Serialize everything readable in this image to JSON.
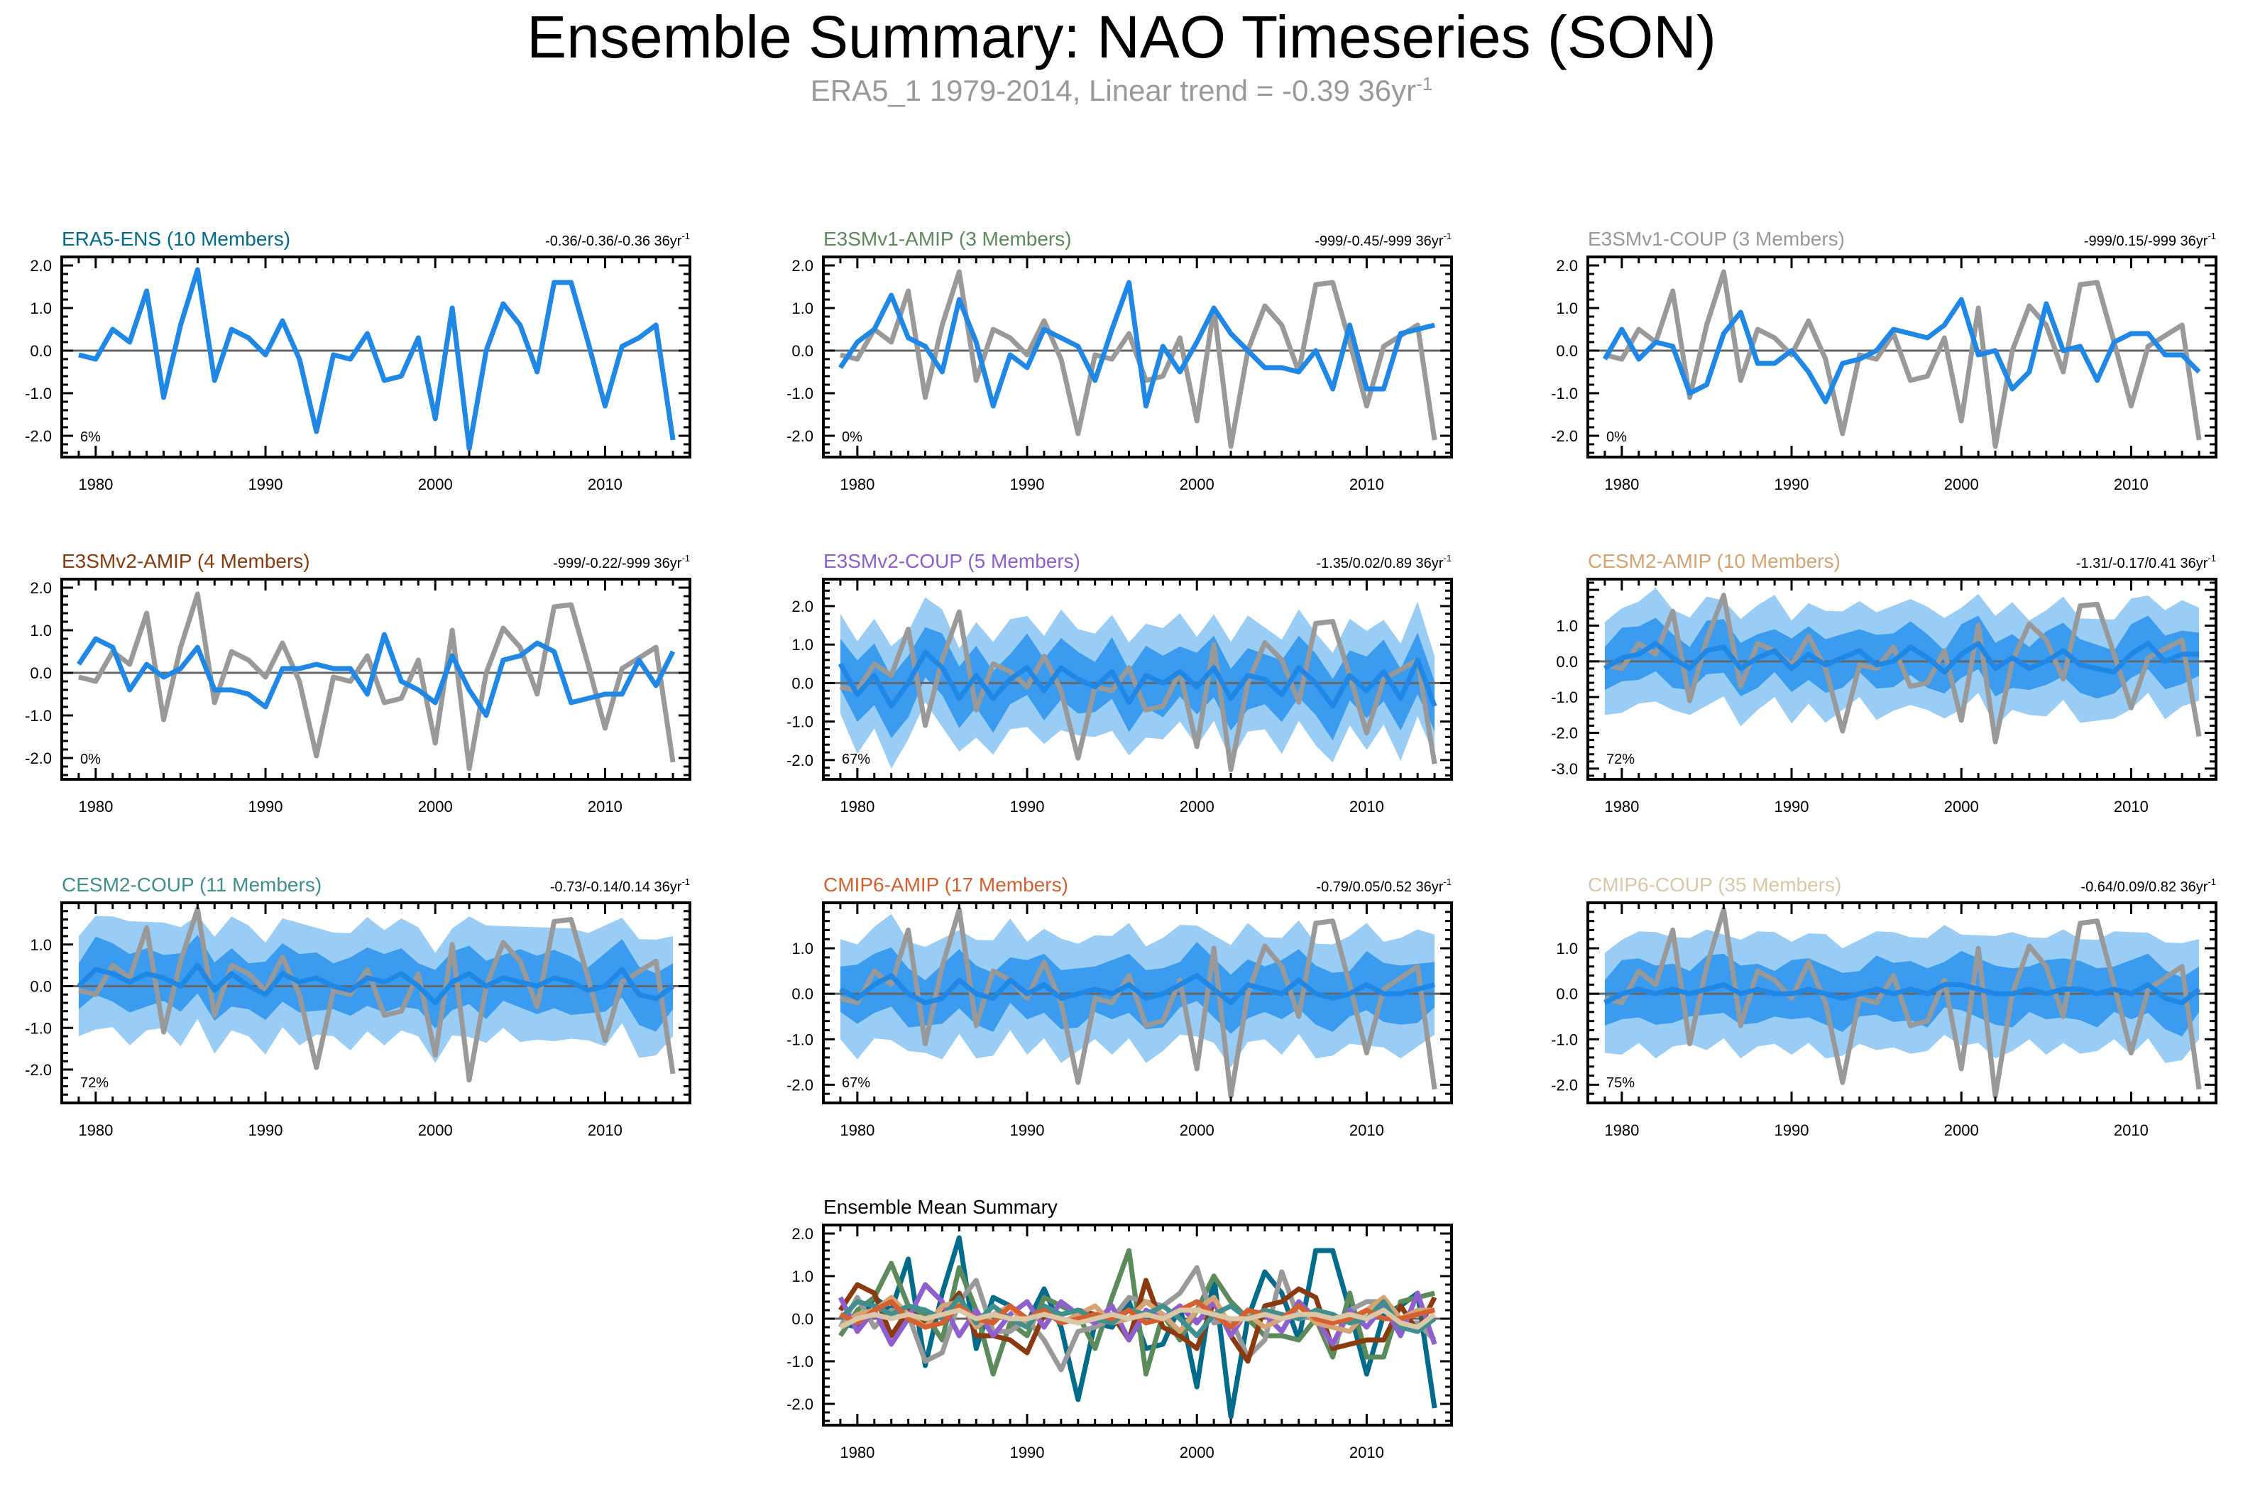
{
  "title": "Ensemble Summary: NAO Timeseries (SON)",
  "subtitle": {
    "text": "ERA5_1 1979-2014, Linear trend = -0.39 36yr",
    "exponent": "-1"
  },
  "colors": {
    "obs": "#999999",
    "mean": "#1f87e5",
    "band_outer": "#9acdf5",
    "band_inner": "#3a9bef",
    "zero_line": "#666666"
  },
  "chart_data": [
    {
      "type": "line",
      "title": "ERA5-ENS (10 Members)",
      "title_color": "#006b8a",
      "trend": "-0.36/-0.36/-0.36 36yr",
      "trend_exp": "-1",
      "pct": "6%",
      "ylim": [
        -2.5,
        2.2
      ],
      "yticks": [
        "2.0",
        "1.0",
        "0.0",
        "-1.0",
        "-2.0"
      ],
      "ytick_values": [
        2,
        1,
        0,
        -1,
        -2
      ],
      "xticks": [
        "1980",
        "1990",
        "2000",
        "2010"
      ],
      "xtick_values": [
        1980,
        1990,
        2000,
        2010
      ],
      "show_obs": false,
      "band": false,
      "mean": [
        -0.1,
        -0.2,
        0.5,
        0.2,
        1.4,
        -1.1,
        0.6,
        1.9,
        -0.7,
        0.5,
        0.3,
        -0.1,
        0.7,
        -0.2,
        -1.9,
        -0.1,
        -0.2,
        0.4,
        -0.7,
        -0.6,
        0.3,
        -1.6,
        1.0,
        -2.3,
        0.0,
        1.1,
        0.6,
        -0.5,
        1.6,
        1.6,
        0.2,
        -1.3,
        0.1,
        0.3,
        0.6,
        -2.1
      ]
    },
    {
      "type": "line",
      "title": "E3SMv1-AMIP (3 Members)",
      "title_color": "#5b8a5b",
      "trend": "-999/-0.45/-999 36yr",
      "trend_exp": "-1",
      "pct": "0%",
      "ylim": [
        -2.5,
        2.2
      ],
      "yticks": [
        "2.0",
        "1.0",
        "0.0",
        "-1.0",
        "-2.0"
      ],
      "ytick_values": [
        2,
        1,
        0,
        -1,
        -2
      ],
      "xticks": [
        "1980",
        "1990",
        "2000",
        "2010"
      ],
      "xtick_values": [
        1980,
        1990,
        2000,
        2010
      ],
      "show_obs": true,
      "band": false,
      "mean": [
        -0.4,
        0.2,
        0.5,
        1.3,
        0.3,
        0.1,
        -0.5,
        1.2,
        0.2,
        -1.3,
        -0.1,
        -0.4,
        0.5,
        0.3,
        0.1,
        -0.7,
        0.5,
        1.6,
        -1.3,
        0.1,
        -0.5,
        0.2,
        1.0,
        0.4,
        0.0,
        -0.4,
        -0.4,
        -0.5,
        0.0,
        -0.9,
        0.6,
        -0.9,
        -0.9,
        0.4,
        0.5,
        0.6
      ]
    },
    {
      "type": "line",
      "title": "E3SMv1-COUP (3 Members)",
      "title_color": "#999999",
      "trend": "-999/0.15/-999 36yr",
      "trend_exp": "-1",
      "pct": "0%",
      "ylim": [
        -2.5,
        2.2
      ],
      "yticks": [
        "2.0",
        "1.0",
        "0.0",
        "-1.0",
        "-2.0"
      ],
      "ytick_values": [
        2,
        1,
        0,
        -1,
        -2
      ],
      "xticks": [
        "1980",
        "1990",
        "2000",
        "2010"
      ],
      "xtick_values": [
        1980,
        1990,
        2000,
        2010
      ],
      "show_obs": true,
      "band": false,
      "mean": [
        -0.2,
        0.5,
        -0.2,
        0.2,
        0.1,
        -1.0,
        -0.8,
        0.4,
        0.9,
        -0.3,
        -0.3,
        0.0,
        -0.5,
        -1.2,
        -0.3,
        -0.2,
        0.0,
        0.5,
        0.4,
        0.3,
        0.6,
        1.2,
        -0.1,
        0.0,
        -0.9,
        -0.5,
        1.1,
        0.0,
        0.1,
        -0.7,
        0.2,
        0.4,
        0.4,
        -0.1,
        -0.1,
        -0.5
      ]
    },
    {
      "type": "line",
      "title": "E3SMv2-AMIP (4 Members)",
      "title_color": "#8b3a0f",
      "trend": "-999/-0.22/-999 36yr",
      "trend_exp": "-1",
      "pct": "0%",
      "ylim": [
        -2.5,
        2.2
      ],
      "yticks": [
        "2.0",
        "1.0",
        "0.0",
        "-1.0",
        "-2.0"
      ],
      "ytick_values": [
        2,
        1,
        0,
        -1,
        -2
      ],
      "xticks": [
        "1980",
        "1990",
        "2000",
        "2010"
      ],
      "xtick_values": [
        1980,
        1990,
        2000,
        2010
      ],
      "show_obs": true,
      "band": false,
      "mean": [
        0.2,
        0.8,
        0.6,
        -0.4,
        0.2,
        -0.1,
        0.1,
        0.6,
        -0.4,
        -0.4,
        -0.5,
        -0.8,
        0.1,
        0.1,
        0.2,
        0.1,
        0.1,
        -0.5,
        0.9,
        -0.2,
        -0.4,
        -0.7,
        0.4,
        -0.4,
        -1.0,
        0.3,
        0.4,
        0.7,
        0.5,
        -0.7,
        -0.6,
        -0.5,
        -0.5,
        0.3,
        -0.3,
        0.5
      ]
    },
    {
      "type": "line",
      "title": "E3SMv2-COUP (5 Members)",
      "title_color": "#8f5fcf",
      "trend": "-1.35/0.02/0.89 36yr",
      "trend_exp": "-1",
      "pct": "67%",
      "ylim": [
        -2.5,
        2.7
      ],
      "yticks": [
        "2.0",
        "1.0",
        "0.0",
        "-1.0",
        "-2.0"
      ],
      "ytick_values": [
        2,
        1,
        0,
        -1,
        -2
      ],
      "xticks": [
        "1980",
        "1990",
        "2000",
        "2010"
      ],
      "xtick_values": [
        1980,
        1990,
        2000,
        2010
      ],
      "show_obs": true,
      "band": true,
      "band_outer": 1.3,
      "band_inner": 0.65,
      "mean": [
        0.5,
        -0.3,
        0.2,
        -0.6,
        0.0,
        0.8,
        0.4,
        -0.4,
        0.2,
        -0.4,
        0.1,
        0.4,
        -0.2,
        0.4,
        0.1,
        -0.1,
        0.3,
        -0.5,
        0.2,
        0.0,
        0.3,
        -0.1,
        0.4,
        -0.4,
        0.2,
        0.1,
        -0.3,
        0.4,
        0.0,
        -0.6,
        0.2,
        -0.2,
        0.3,
        -0.4,
        0.6,
        -0.6
      ]
    },
    {
      "type": "line",
      "title": "CESM2-AMIP (10 Members)",
      "title_color": "#d6a373",
      "trend": "-1.31/-0.17/0.41 36yr",
      "trend_exp": "-1",
      "pct": "72%",
      "ylim": [
        -3.3,
        2.3
      ],
      "yticks": [
        "1.0",
        "0.0",
        "-1.0",
        "-2.0",
        "-3.0"
      ],
      "ytick_values": [
        1,
        0,
        -1,
        -2,
        -3
      ],
      "xticks": [
        "1980",
        "1990",
        "2000",
        "2010"
      ],
      "xtick_values": [
        1980,
        1990,
        2000,
        2010
      ],
      "show_obs": true,
      "band": true,
      "band_outer": 1.3,
      "band_inner": 0.6,
      "mean": [
        -0.2,
        0.1,
        0.2,
        0.5,
        0.1,
        -0.2,
        0.3,
        0.4,
        -0.2,
        0.1,
        0.3,
        -0.2,
        0.2,
        -0.1,
        0.1,
        0.3,
        -0.1,
        0.0,
        0.4,
        0.1,
        -0.3,
        0.2,
        0.5,
        -0.2,
        0.1,
        -0.2,
        0.0,
        0.3,
        -0.1,
        -0.2,
        -0.3,
        0.2,
        0.5,
        0.0,
        0.2,
        0.2
      ]
    },
    {
      "type": "line",
      "title": "CESM2-COUP (11 Members)",
      "title_color": "#3f8f8f",
      "trend": "-0.73/-0.14/0.14 36yr",
      "trend_exp": "-1",
      "pct": "72%",
      "ylim": [
        -2.8,
        2.0
      ],
      "yticks": [
        "1.0",
        "0.0",
        "-1.0",
        "-2.0"
      ],
      "ytick_values": [
        1,
        0,
        -1,
        -2
      ],
      "xticks": [
        "1980",
        "1990",
        "2000",
        "2010"
      ],
      "xtick_values": [
        1980,
        1990,
        2000,
        2010
      ],
      "show_obs": true,
      "band": true,
      "band_outer": 1.2,
      "band_inner": 0.55,
      "mean": [
        0.0,
        0.4,
        0.3,
        0.1,
        0.3,
        0.2,
        0.0,
        0.5,
        -0.1,
        0.3,
        0.0,
        -0.2,
        0.3,
        0.1,
        0.2,
        0.0,
        -0.1,
        0.2,
        0.1,
        0.3,
        0.0,
        -0.4,
        0.1,
        0.3,
        0.0,
        0.2,
        0.1,
        0.0,
        0.2,
        0.1,
        -0.1,
        0.0,
        0.4,
        -0.2,
        -0.3,
        0.0
      ]
    },
    {
      "type": "line",
      "title": "CMIP6-AMIP (17 Members)",
      "title_color": "#d65f2f",
      "trend": "-0.79/0.05/0.52 36yr",
      "trend_exp": "-1",
      "pct": "67%",
      "ylim": [
        -2.4,
        2.0
      ],
      "yticks": [
        "1.0",
        "0.0",
        "-1.0",
        "-2.0"
      ],
      "ytick_values": [
        1,
        0,
        -1,
        -2
      ],
      "xticks": [
        "1980",
        "1990",
        "2000",
        "2010"
      ],
      "xtick_values": [
        1980,
        1990,
        2000,
        2010
      ],
      "show_obs": true,
      "band": true,
      "band_outer": 1.1,
      "band_inner": 0.5,
      "mean": [
        0.1,
        -0.1,
        0.2,
        0.4,
        0.0,
        -0.2,
        -0.1,
        0.3,
        0.0,
        -0.1,
        0.3,
        0.0,
        0.2,
        -0.1,
        0.0,
        0.1,
        0.0,
        0.2,
        -0.1,
        0.0,
        0.2,
        0.4,
        0.1,
        -0.2,
        0.2,
        0.1,
        0.0,
        0.3,
        0.0,
        -0.1,
        0.0,
        0.2,
        0.0,
        0.0,
        0.1,
        0.2
      ]
    },
    {
      "type": "line",
      "title": "CMIP6-COUP (35 Members)",
      "title_color": "#d9c7a7",
      "trend": "-0.64/0.09/0.82 36yr",
      "trend_exp": "-1",
      "pct": "75%",
      "ylim": [
        -2.4,
        2.0
      ],
      "yticks": [
        "1.0",
        "0.0",
        "-1.0",
        "-2.0"
      ],
      "ytick_values": [
        1,
        0,
        -1,
        -2
      ],
      "xticks": [
        "1980",
        "1990",
        "2000",
        "2010"
      ],
      "xtick_values": [
        1980,
        1990,
        2000,
        2010
      ],
      "show_obs": true,
      "band": true,
      "band_outer": 1.1,
      "band_inner": 0.5,
      "mean": [
        -0.2,
        0.0,
        0.1,
        0.0,
        0.1,
        0.0,
        0.1,
        0.2,
        0.0,
        0.1,
        0.0,
        0.0,
        0.1,
        0.0,
        -0.1,
        0.0,
        0.1,
        0.0,
        0.1,
        0.0,
        0.2,
        0.2,
        0.1,
        0.0,
        0.0,
        0.1,
        0.0,
        0.1,
        0.1,
        0.0,
        0.1,
        0.0,
        0.2,
        -0.1,
        -0.2,
        0.1
      ]
    },
    {
      "type": "line",
      "title": "Ensemble Mean Summary",
      "title_color": "#000000",
      "trend": "",
      "trend_exp": "",
      "pct": "",
      "ylim": [
        -2.5,
        2.2
      ],
      "yticks": [
        "2.0",
        "1.0",
        "0.0",
        "-1.0",
        "-2.0"
      ],
      "ytick_values": [
        2,
        1,
        0,
        -1,
        -2
      ],
      "xticks": [
        "1980",
        "1990",
        "2000",
        "2010"
      ],
      "xtick_values": [
        1980,
        1990,
        2000,
        2010
      ],
      "show_obs": false,
      "band": false,
      "summary": true
    }
  ],
  "obs_series": {
    "name": "ERA5_1",
    "years_start": 1979,
    "values": [
      -0.1,
      -0.2,
      0.5,
      0.2,
      1.4,
      -1.1,
      0.6,
      1.85,
      -0.7,
      0.5,
      0.3,
      -0.1,
      0.7,
      -0.2,
      -1.95,
      -0.1,
      -0.2,
      0.4,
      -0.7,
      -0.6,
      0.3,
      -1.65,
      1.0,
      -2.25,
      0.0,
      1.05,
      0.6,
      -0.5,
      1.55,
      1.6,
      0.2,
      -1.3,
      0.1,
      0.35,
      0.6,
      -2.1
    ]
  }
}
